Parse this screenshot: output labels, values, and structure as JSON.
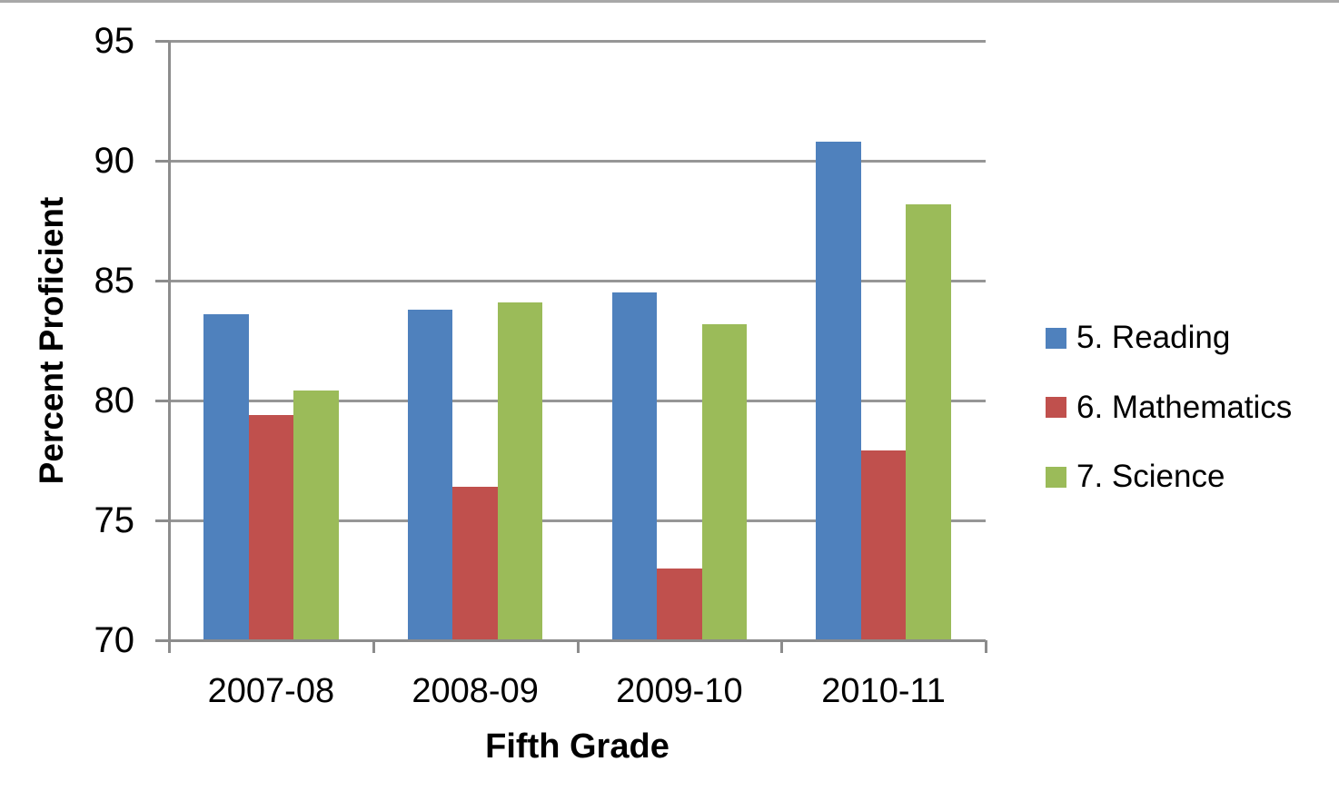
{
  "chart_data": {
    "type": "bar",
    "title": "",
    "categories": [
      "2007-08",
      "2008-09",
      "2009-10",
      "2010-11"
    ],
    "series": [
      {
        "name": "5. Reading",
        "color": "#4F81BD",
        "values": [
          83.6,
          83.8,
          84.5,
          90.8
        ]
      },
      {
        "name": "6. Mathematics",
        "color": "#C0504D",
        "values": [
          79.4,
          76.4,
          73.0,
          77.9
        ]
      },
      {
        "name": "7. Science",
        "color": "#9BBB59",
        "values": [
          80.4,
          84.1,
          83.2,
          88.2
        ]
      }
    ],
    "xlabel": "Fifth Grade",
    "ylabel": "Percent Proficient",
    "ylim": [
      70,
      95
    ],
    "yticks": [
      70,
      75,
      80,
      85,
      90,
      95
    ],
    "grid": true,
    "legend_position": "right",
    "colors": {
      "gridline": "#969696",
      "axis": "#8C8C8C",
      "text": "#000000",
      "frame_top": "#A8A8A8",
      "background": "#FFFFFF"
    }
  }
}
